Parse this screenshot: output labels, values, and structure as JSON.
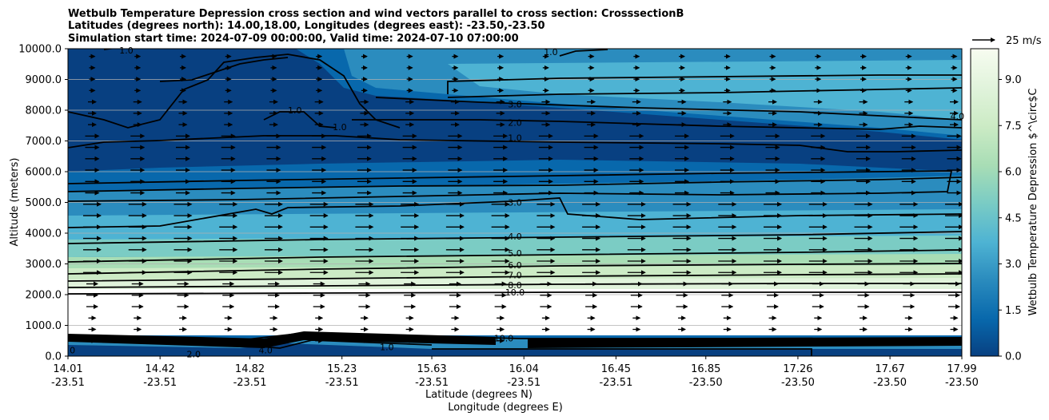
{
  "chart_data": {
    "type": "contour",
    "title_lines": [
      "Wetbulb Temperature Depression cross section and wind vectors parallel to cross section: CrosssectionB",
      "Latitudes (degrees north): 14.00,18.00, Longitudes (degrees east): -23.50,-23.50",
      "Simulation start time: 2024-07-09 00:00:00, Valid time: 2024-07-10 07:00:00"
    ],
    "ylabel": "Altitude (meters)",
    "xlabel_lat": "Latitude (degrees N)",
    "xlabel_lon": "Longitude (degrees E)",
    "ylim": [
      0,
      10000
    ],
    "xlim": [
      14.01,
      17.99
    ],
    "y_ticks": [
      "0.0",
      "1000.0",
      "2000.0",
      "3000.0",
      "4000.0",
      "5000.0",
      "6000.0",
      "7000.0",
      "8000.0",
      "9000.0",
      "10000.0"
    ],
    "y_tick_values": [
      0,
      1000,
      2000,
      3000,
      4000,
      5000,
      6000,
      7000,
      8000,
      9000,
      10000
    ],
    "x_tick_lat": [
      "14.01",
      "14.42",
      "14.82",
      "15.23",
      "15.63",
      "16.04",
      "16.45",
      "16.85",
      "17.26",
      "17.67",
      "17.99"
    ],
    "x_tick_lon": [
      "-23.51",
      "-23.51",
      "-23.51",
      "-23.51",
      "-23.51",
      "-23.51",
      "-23.51",
      "-23.50",
      "-23.50",
      "-23.50",
      "-23.50"
    ],
    "x_tick_values": [
      14.01,
      14.42,
      14.82,
      15.23,
      15.63,
      16.04,
      16.45,
      16.85,
      17.26,
      17.67,
      17.99
    ],
    "grid": "horizontal",
    "colorbar": {
      "label": "Wetbulb Temperature Depression $^\\circ$C",
      "min": 0,
      "max": 10,
      "ticks": [
        "0.0",
        "1.5",
        "3.0",
        "4.5",
        "6.0",
        "7.5",
        "9.0"
      ],
      "tick_values": [
        0,
        1.5,
        3,
        4.5,
        6,
        7.5,
        9
      ],
      "colors": [
        "#084081",
        "#0868ac",
        "#2b8cbe",
        "#4eb3d3",
        "#7bccc4",
        "#a8ddb5",
        "#ccebc5",
        "#e0f3db",
        "#f7fcf0"
      ]
    },
    "quiver_key": "25 m/s",
    "contour_labels": [
      {
        "text": "3.0",
        "x": 16.0,
        "y": 8200
      },
      {
        "text": "2.0",
        "x": 16.0,
        "y": 7600
      },
      {
        "text": "1.0",
        "x": 16.0,
        "y": 7100
      },
      {
        "text": "1.0",
        "x": 14.27,
        "y": 9950
      },
      {
        "text": "1.0",
        "x": 16.16,
        "y": 9900
      },
      {
        "text": "1.0",
        "x": 15.02,
        "y": 8000
      },
      {
        "text": "1.0",
        "x": 15.22,
        "y": 7450
      },
      {
        "text": "4.0",
        "x": 17.97,
        "y": 7800
      },
      {
        "text": "3.0",
        "x": 16.0,
        "y": 5000
      },
      {
        "text": "4.0",
        "x": 16.0,
        "y": 3900
      },
      {
        "text": "5.0",
        "x": 16.0,
        "y": 3350
      },
      {
        "text": "6.0",
        "x": 16.0,
        "y": 2960
      },
      {
        "text": "7.0",
        "x": 16.0,
        "y": 2640
      },
      {
        "text": "8.0",
        "x": 16.0,
        "y": 2310
      },
      {
        "text": "10.0",
        "x": 16.0,
        "y": 2080
      },
      {
        "text": "10.0",
        "x": 15.95,
        "y": 580
      },
      {
        "text": "4.0",
        "x": 14.89,
        "y": 200
      },
      {
        "text": "2.0",
        "x": 14.57,
        "y": 60
      },
      {
        "text": "1.0",
        "x": 15.43,
        "y": 300
      },
      {
        "text": "0",
        "x": 14.03,
        "y": 200
      }
    ]
  }
}
